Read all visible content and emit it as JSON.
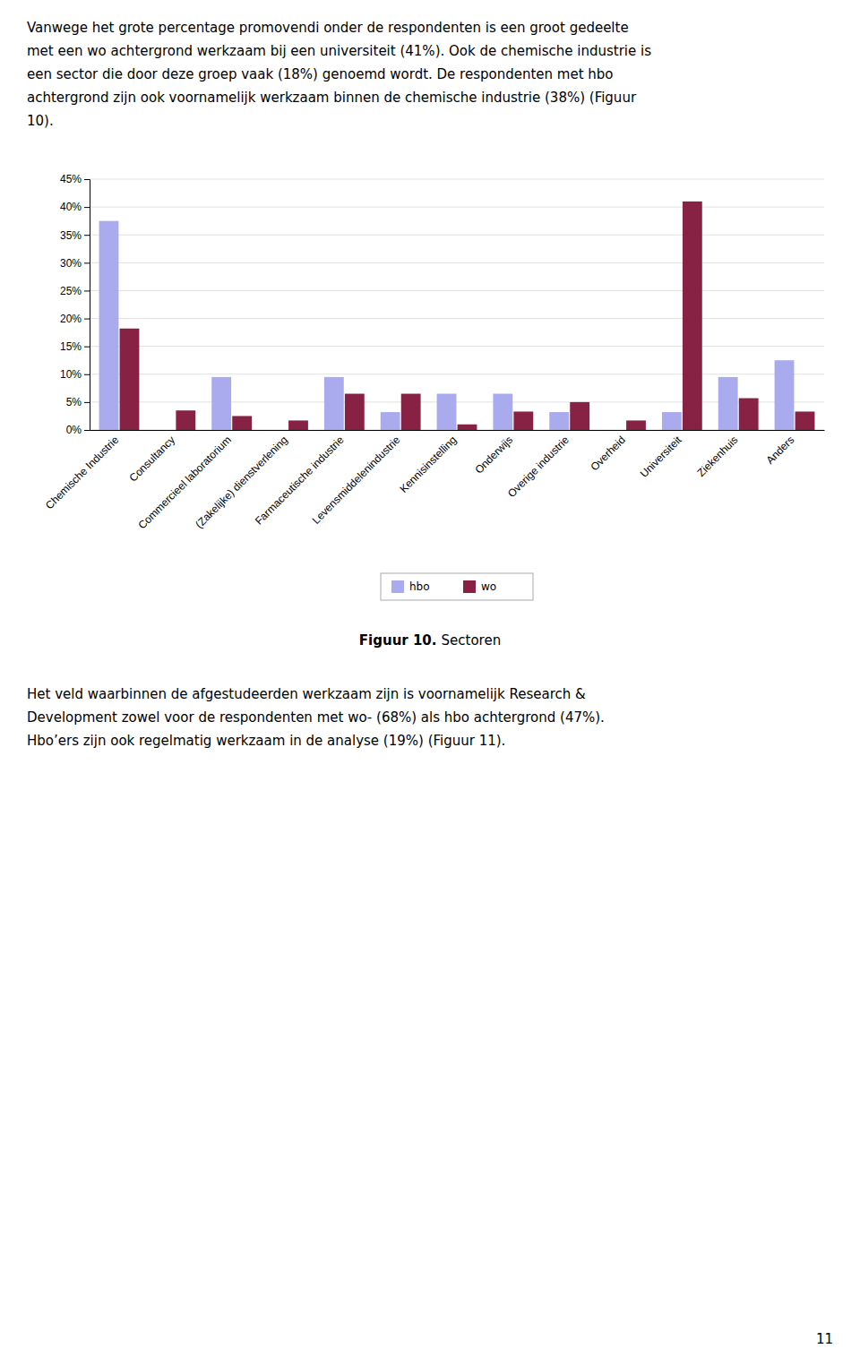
{
  "chart_data": {
    "type": "bar",
    "categories": [
      "Chemische Industrie",
      "Consultancy",
      "Commercieel laboratorium",
      "(Zakelijke) dienstverlening",
      "Farmaceutische industrie",
      "Levensmiddelenindustrie",
      "Kennisinstelling",
      "Onderwijs",
      "Overige industrie",
      "Overheid",
      "Universiteit",
      "Ziekenhuis",
      "Anders"
    ],
    "series": [
      {
        "name": "hbo",
        "color": "#aaaaee",
        "values": [
          0.375,
          0.0,
          0.095,
          0.0,
          0.095,
          0.032,
          0.065,
          0.065,
          0.032,
          0.0,
          0.032,
          0.095,
          0.125
        ]
      },
      {
        "name": "wo",
        "color": "#882244",
        "values": [
          0.182,
          0.035,
          0.025,
          0.017,
          0.065,
          0.065,
          0.01,
          0.033,
          0.05,
          0.017,
          0.41,
          0.057,
          0.033
        ]
      }
    ],
    "ylim": [
      0,
      0.45
    ],
    "yticks": [
      {
        "value": 0.0,
        "label": "0%"
      },
      {
        "value": 0.05,
        "label": "5%"
      },
      {
        "value": 0.1,
        "label": "10%"
      },
      {
        "value": 0.15,
        "label": "15%"
      },
      {
        "value": 0.2,
        "label": "20%"
      },
      {
        "value": 0.25,
        "label": "25%"
      },
      {
        "value": 0.3,
        "label": "30%"
      },
      {
        "value": 0.35,
        "label": "35%"
      },
      {
        "value": 0.4,
        "label": "40%"
      },
      {
        "value": 0.45,
        "label": "45%"
      }
    ],
    "grid": true,
    "legend": "bottom"
  },
  "page_text": {
    "body_text": [
      "Vanwege het grote percentage promovendi onder de respondenten is een groot gedeelte",
      "met een wo achtergrond werkzaam bij een universiteit (41%). Ook de chemische industrie is",
      "een sector die door deze groep vaak (18%) genoemd wordt. De respondenten met hbo",
      "achtergrond zijn ook voornamelijk werkzaam binnen de chemische industrie (38%) (Figuur",
      "10)."
    ],
    "figure_label": "Figuur 10.",
    "figure_caption": "Sectoren",
    "footer_text": [
      "Het veld waarbinnen de afgestudeerden werkzaam zijn is voornamelijk Research &",
      "Development zowel voor de respondenten met wo- (68%) als hbo achtergrond (47%).",
      "Hbo’ers zijn ook regelmatig werkzaam in de analyse (19%) (Figuur 11)."
    ],
    "page_number": "11"
  }
}
